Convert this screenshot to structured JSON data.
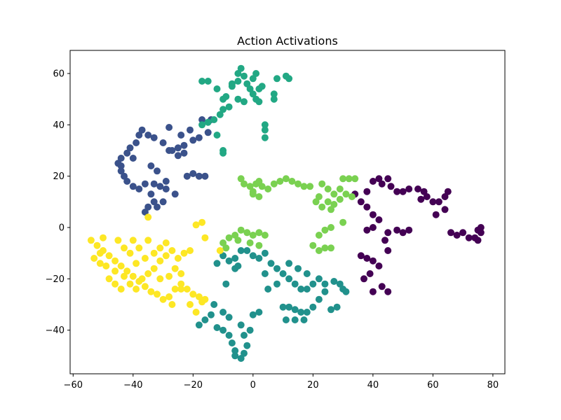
{
  "chart_data": {
    "type": "scatter",
    "title": "Action Activations",
    "xlabel": "",
    "ylabel": "",
    "xlim": [
      -61,
      84
    ],
    "ylim": [
      -57,
      69
    ],
    "xticks": [
      -60,
      -40,
      -20,
      0,
      20,
      40,
      60,
      80
    ],
    "yticks": [
      -40,
      -20,
      0,
      20,
      40,
      60
    ],
    "grid": false,
    "series": [
      {
        "color": "#440154",
        "points": [
          [
            34,
            13
          ],
          [
            36,
            10
          ],
          [
            38,
            14
          ],
          [
            40,
            18
          ],
          [
            42,
            19
          ],
          [
            43,
            17
          ],
          [
            45,
            19
          ],
          [
            46,
            16
          ],
          [
            48,
            14
          ],
          [
            50,
            14
          ],
          [
            52,
            15
          ],
          [
            55,
            15
          ],
          [
            57,
            14
          ],
          [
            58,
            12
          ],
          [
            56,
            11
          ],
          [
            60,
            10
          ],
          [
            62,
            10
          ],
          [
            64,
            12
          ],
          [
            64,
            7
          ],
          [
            61,
            5
          ],
          [
            65,
            14
          ],
          [
            38,
            8
          ],
          [
            40,
            5
          ],
          [
            42,
            3
          ],
          [
            40,
            0
          ],
          [
            38,
            -1
          ],
          [
            45,
            -2
          ],
          [
            48,
            -1
          ],
          [
            50,
            -2
          ],
          [
            52,
            -1
          ],
          [
            44,
            -5
          ],
          [
            45,
            -9
          ],
          [
            40,
            -13
          ],
          [
            42,
            -15
          ],
          [
            38,
            -12
          ],
          [
            36,
            -11
          ],
          [
            39,
            -18
          ],
          [
            43,
            -23
          ],
          [
            45,
            -25
          ],
          [
            40,
            -25
          ],
          [
            37,
            -20
          ],
          [
            66,
            -2
          ],
          [
            68,
            -3
          ],
          [
            70,
            -2
          ],
          [
            72,
            -4
          ],
          [
            74,
            -4
          ],
          [
            75,
            -1
          ],
          [
            76,
            -2
          ],
          [
            75,
            -5
          ],
          [
            76,
            0
          ]
        ]
      },
      {
        "color": "#3b528b",
        "points": [
          [
            -17,
            42
          ],
          [
            -14,
            42
          ],
          [
            -15,
            37
          ],
          [
            -18,
            35
          ],
          [
            -20,
            34
          ],
          [
            -23,
            32
          ],
          [
            -25,
            31
          ],
          [
            -27,
            30
          ],
          [
            -28,
            30
          ],
          [
            -30,
            33
          ],
          [
            -33,
            35
          ],
          [
            -35,
            36
          ],
          [
            -37,
            38
          ],
          [
            -38,
            36
          ],
          [
            -39,
            33
          ],
          [
            -41,
            31
          ],
          [
            -42,
            29
          ],
          [
            -44,
            27
          ],
          [
            -45,
            25
          ],
          [
            -44,
            22
          ],
          [
            -43,
            20
          ],
          [
            -42,
            18
          ],
          [
            -40,
            16
          ],
          [
            -38,
            15
          ],
          [
            -36,
            17
          ],
          [
            -33,
            17
          ],
          [
            -31,
            16
          ],
          [
            -29,
            18
          ],
          [
            -34,
            13
          ],
          [
            -33,
            10
          ],
          [
            -35,
            8
          ],
          [
            -36,
            6
          ],
          [
            -32,
            8
          ],
          [
            -30,
            10
          ],
          [
            -25,
            28
          ],
          [
            -23,
            29
          ],
          [
            -20,
            21
          ],
          [
            -18,
            20
          ],
          [
            -16,
            20
          ],
          [
            -22,
            20
          ],
          [
            -26,
            13
          ],
          [
            -29,
            15
          ],
          [
            -28,
            39
          ],
          [
            -24,
            36
          ],
          [
            -21,
            38
          ],
          [
            -34,
            24
          ],
          [
            -32,
            22
          ],
          [
            -40,
            27
          ],
          [
            -44,
            24
          ]
        ]
      },
      {
        "color": "#21918c",
        "points": [
          [
            -10,
            -11
          ],
          [
            -12,
            -14
          ],
          [
            -8,
            -13
          ],
          [
            -6,
            -12
          ],
          [
            -4,
            -9
          ],
          [
            -2,
            -9
          ],
          [
            0,
            -11
          ],
          [
            2,
            -12
          ],
          [
            4,
            -10
          ],
          [
            6,
            -14
          ],
          [
            8,
            -16
          ],
          [
            10,
            -18
          ],
          [
            12,
            -20
          ],
          [
            14,
            -22
          ],
          [
            16,
            -24
          ],
          [
            18,
            -24
          ],
          [
            20,
            -22
          ],
          [
            22,
            -20
          ],
          [
            24,
            -22
          ],
          [
            22,
            -28
          ],
          [
            20,
            -31
          ],
          [
            18,
            -33
          ],
          [
            16,
            -33
          ],
          [
            14,
            -32
          ],
          [
            12,
            -31
          ],
          [
            10,
            -31
          ],
          [
            26,
            -32
          ],
          [
            28,
            -31
          ],
          [
            27,
            -21
          ],
          [
            29,
            -22
          ],
          [
            30,
            -24
          ],
          [
            31,
            -25
          ],
          [
            11,
            -36
          ],
          [
            14,
            -36
          ],
          [
            17,
            -36
          ],
          [
            -13,
            -30
          ],
          [
            -14,
            -34
          ],
          [
            -12,
            -39
          ],
          [
            -10,
            -40
          ],
          [
            -8,
            -42
          ],
          [
            -7,
            -45
          ],
          [
            -6,
            -48
          ],
          [
            -4,
            -51
          ],
          [
            -6,
            -50
          ],
          [
            -3,
            -49
          ],
          [
            -2,
            -46
          ],
          [
            -3,
            -42
          ],
          [
            -1,
            -40
          ],
          [
            -4,
            -38
          ],
          [
            0,
            -34
          ],
          [
            2,
            -33
          ],
          [
            -10,
            -33
          ],
          [
            -8,
            -35
          ],
          [
            -16,
            -36
          ],
          [
            -18,
            -38
          ],
          [
            -9,
            -22
          ],
          [
            -6,
            -16
          ],
          [
            5,
            -24
          ],
          [
            8,
            -22
          ],
          [
            4,
            -18
          ],
          [
            15,
            -16
          ],
          [
            18,
            -18
          ],
          [
            12,
            -14
          ],
          [
            24,
            -25
          ],
          [
            -5,
            -15
          ]
        ]
      },
      {
        "color": "#22a884",
        "points": [
          [
            -17,
            57
          ],
          [
            -15,
            57
          ],
          [
            -12,
            54
          ],
          [
            -10,
            50
          ],
          [
            -8,
            47
          ],
          [
            -10,
            46
          ],
          [
            -11,
            44
          ],
          [
            -13,
            42
          ],
          [
            -15,
            41
          ],
          [
            -17,
            40
          ],
          [
            -12,
            36
          ],
          [
            -10,
            30
          ],
          [
            -10,
            29
          ],
          [
            -5,
            57
          ],
          [
            -5,
            60
          ],
          [
            -4,
            62
          ],
          [
            -3,
            59
          ],
          [
            -2,
            56
          ],
          [
            0,
            58
          ],
          [
            1,
            60
          ],
          [
            -1,
            54
          ],
          [
            0,
            52
          ],
          [
            1,
            50
          ],
          [
            2,
            54
          ],
          [
            3,
            55
          ],
          [
            2,
            49
          ],
          [
            -3,
            49
          ],
          [
            -5,
            50
          ],
          [
            -7,
            55
          ],
          [
            -9,
            51
          ],
          [
            4,
            40
          ],
          [
            4,
            38
          ],
          [
            4,
            35
          ],
          [
            11,
            59
          ],
          [
            12,
            58
          ],
          [
            7,
            52
          ],
          [
            7,
            50
          ],
          [
            8,
            58
          ],
          [
            -7,
            56
          ]
        ]
      },
      {
        "color": "#7ad151",
        "points": [
          [
            -4,
            19
          ],
          [
            -3,
            17
          ],
          [
            -1,
            16
          ],
          [
            0,
            14
          ],
          [
            1,
            17
          ],
          [
            2,
            18
          ],
          [
            3,
            16
          ],
          [
            5,
            15
          ],
          [
            7,
            17
          ],
          [
            9,
            18
          ],
          [
            11,
            19
          ],
          [
            13,
            18
          ],
          [
            15,
            17
          ],
          [
            17,
            16
          ],
          [
            19,
            16
          ],
          [
            2,
            12
          ],
          [
            0,
            13
          ],
          [
            23,
            17
          ],
          [
            25,
            15
          ],
          [
            27,
            13
          ],
          [
            29,
            15
          ],
          [
            31,
            13
          ],
          [
            33,
            12
          ],
          [
            22,
            12
          ],
          [
            21,
            10
          ],
          [
            23,
            8
          ],
          [
            25,
            10
          ],
          [
            27,
            9
          ],
          [
            29,
            11
          ],
          [
            26,
            7
          ],
          [
            30,
            19
          ],
          [
            32,
            19
          ],
          [
            34,
            19
          ],
          [
            26,
            0
          ],
          [
            24,
            -1
          ],
          [
            22,
            -3
          ],
          [
            30,
            2
          ],
          [
            20,
            -7
          ],
          [
            22,
            -9
          ],
          [
            24,
            -8
          ],
          [
            26,
            -8
          ],
          [
            -10,
            -6
          ],
          [
            -8,
            -4
          ],
          [
            -6,
            -3
          ],
          [
            -4,
            -1
          ],
          [
            -2,
            -2
          ],
          [
            0,
            -3
          ],
          [
            2,
            -2
          ],
          [
            4,
            -3
          ],
          [
            -1,
            -6
          ],
          [
            2,
            -7
          ],
          [
            -5,
            -5
          ],
          [
            -9,
            -8
          ]
        ]
      },
      {
        "color": "#fde725",
        "points": [
          [
            -54,
            -5
          ],
          [
            -52,
            -7
          ],
          [
            -50,
            -9
          ],
          [
            -48,
            -11
          ],
          [
            -46,
            -13
          ],
          [
            -44,
            -15
          ],
          [
            -42,
            -17
          ],
          [
            -40,
            -19
          ],
          [
            -38,
            -21
          ],
          [
            -36,
            -23
          ],
          [
            -34,
            -25
          ],
          [
            -32,
            -26
          ],
          [
            -30,
            -28
          ],
          [
            -28,
            -27
          ],
          [
            -26,
            -24
          ],
          [
            -24,
            -22
          ],
          [
            -22,
            -24
          ],
          [
            -20,
            -26
          ],
          [
            -18,
            -27
          ],
          [
            -17,
            -29
          ],
          [
            -16,
            -28
          ],
          [
            -19,
            -33
          ],
          [
            -21,
            -30
          ],
          [
            -27,
            -30
          ],
          [
            -53,
            -12
          ],
          [
            -51,
            -14
          ],
          [
            -49,
            -15
          ],
          [
            -46,
            -17
          ],
          [
            -43,
            -19
          ],
          [
            -41,
            -22
          ],
          [
            -39,
            -24
          ],
          [
            -37,
            -20
          ],
          [
            -35,
            -18
          ],
          [
            -33,
            -16
          ],
          [
            -31,
            -13
          ],
          [
            -29,
            -11
          ],
          [
            -27,
            -9
          ],
          [
            -25,
            -12
          ],
          [
            -23,
            -10
          ],
          [
            -21,
            -9
          ],
          [
            -45,
            -5
          ],
          [
            -43,
            -8
          ],
          [
            -41,
            -10
          ],
          [
            -38,
            -8
          ],
          [
            -36,
            -12
          ],
          [
            -33,
            -10
          ],
          [
            -31,
            -8
          ],
          [
            -29,
            -6
          ],
          [
            -48,
            -20
          ],
          [
            -46,
            -22
          ],
          [
            -44,
            -24
          ],
          [
            -28,
            -19
          ],
          [
            -26,
            -16
          ],
          [
            -24,
            -18
          ],
          [
            -50,
            -4
          ],
          [
            -40,
            -5
          ],
          [
            -35,
            4
          ],
          [
            -19,
            1
          ],
          [
            -17,
            2
          ],
          [
            -16,
            -4
          ],
          [
            -11,
            -9
          ],
          [
            -24,
            -24
          ],
          [
            -31,
            -20
          ],
          [
            -35,
            -5
          ],
          [
            -51,
            -10
          ],
          [
            -39,
            -14
          ]
        ]
      }
    ]
  }
}
